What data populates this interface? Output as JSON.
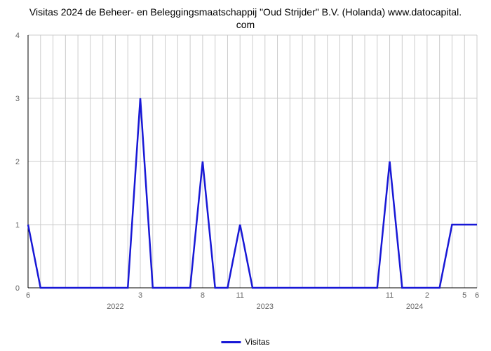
{
  "chart": {
    "type": "line",
    "title_line1": "Visitas 2024 de Beheer- en Beleggingsmaatschappij \"Oud Strijder\" B.V. (Holanda) www.datocapital.",
    "title_line2": "com",
    "title_fontsize": 14,
    "title_color": "#000000",
    "background_color": "#ffffff",
    "grid_color": "#cccccc",
    "axis_color": "#000000",
    "line_color": "#1818d6",
    "line_width": 2.5,
    "x_label_tick_color": "#666666",
    "y_label_tick_color": "#666666",
    "label_fontsize": 11,
    "ylim": [
      0,
      4
    ],
    "yticks": [
      0,
      1,
      2,
      3,
      4
    ],
    "n_points": 37,
    "x_major_labels": [
      {
        "idx": 7,
        "text": "2022"
      },
      {
        "idx": 19,
        "text": "2023"
      },
      {
        "idx": 31,
        "text": "2024"
      }
    ],
    "x_minor_labels": [
      {
        "idx": 0,
        "text": "6"
      },
      {
        "idx": 9,
        "text": "3"
      },
      {
        "idx": 14,
        "text": "8"
      },
      {
        "idx": 17,
        "text": "11"
      },
      {
        "idx": 29,
        "text": "11"
      },
      {
        "idx": 32,
        "text": "2"
      },
      {
        "idx": 35,
        "text": "5"
      },
      {
        "idx": 36,
        "text": "6"
      }
    ],
    "values": [
      1,
      0,
      0,
      0,
      0,
      0,
      0,
      0,
      0,
      3,
      0,
      0,
      0,
      0,
      2,
      0,
      0,
      1,
      0,
      0,
      0,
      0,
      0,
      0,
      0,
      0,
      0,
      0,
      0,
      2,
      0,
      0,
      0,
      0,
      1,
      1,
      1
    ],
    "legend_label": "Visitas",
    "legend_fontsize": 12
  }
}
